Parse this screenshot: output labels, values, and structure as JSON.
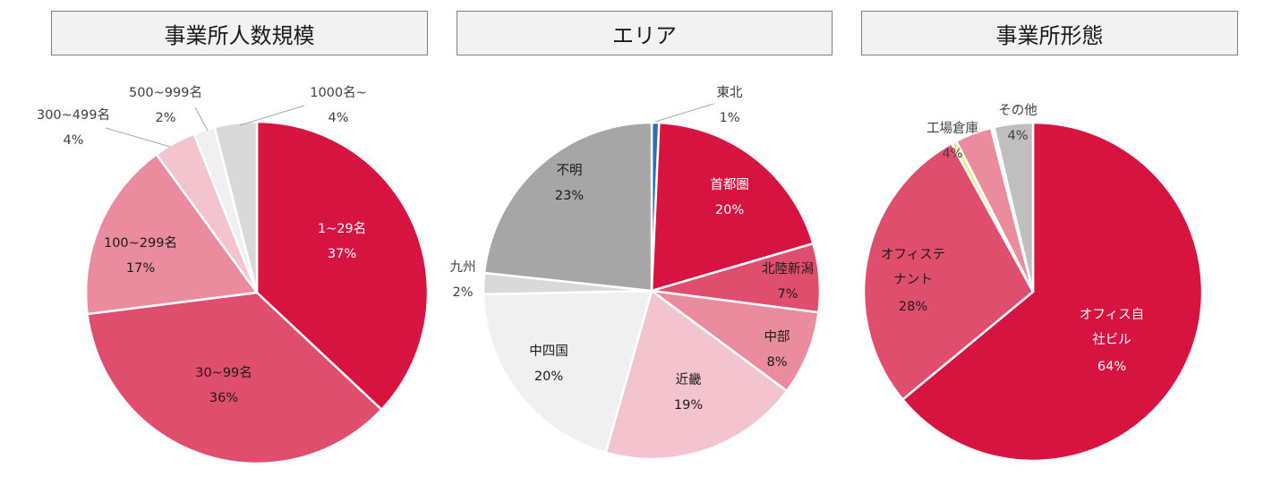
{
  "chart_data": [
    {
      "type": "pie",
      "title": "事業所人数規模",
      "slices": [
        {
          "label": "1~29名",
          "value": 37,
          "pct_text": "37%",
          "color": "#d71440"
        },
        {
          "label": "30~99名",
          "value": 36,
          "pct_text": "36%",
          "color": "#df4f6d"
        },
        {
          "label": "100~299名",
          "value": 17,
          "pct_text": "17%",
          "color": "#ea8c9d"
        },
        {
          "label": "300~499名",
          "value": 4,
          "pct_text": "4%",
          "color": "#f4c4ce"
        },
        {
          "label": "500~999名",
          "value": 2,
          "pct_text": "2%",
          "color": "#f0f0f0"
        },
        {
          "label": "1000名~",
          "value": 4,
          "pct_text": "4%",
          "color": "#d9d9d9"
        }
      ]
    },
    {
      "type": "pie",
      "title": "エリア",
      "slices": [
        {
          "label": "東北",
          "value": 0.7,
          "pct_text": "1%",
          "color": "#2e6fb5"
        },
        {
          "label": "首都圏",
          "value": 19.5,
          "pct_text": "20%",
          "color": "#d71440"
        },
        {
          "label": "北陸新潟",
          "value": 6.5,
          "pct_text": "7%",
          "color": "#df4f6d"
        },
        {
          "label": "中部",
          "value": 8,
          "pct_text": "8%",
          "color": "#ea8c9d"
        },
        {
          "label": "近畿",
          "value": 19,
          "pct_text": "19%",
          "color": "#f4c4ce"
        },
        {
          "label": "中四国",
          "value": 20,
          "pct_text": "20%",
          "color": "#f0f0f0"
        },
        {
          "label": "九州",
          "value": 2,
          "pct_text": "2%",
          "color": "#d9d9d9"
        },
        {
          "label": "不明",
          "value": 23,
          "pct_text": "23%",
          "color": "#a6a6a6"
        }
      ]
    },
    {
      "type": "pie",
      "title": "事業所形態",
      "slices": [
        {
          "label": "オフィス自社ビル",
          "value": 64,
          "pct_text": "64%",
          "color": "#d71440"
        },
        {
          "label": "オフィステナント",
          "value": 28,
          "pct_text": "28%",
          "color": "#df4f6d"
        },
        {
          "label": "",
          "value": 0.5,
          "pct_text": "",
          "color": "#f2e98a"
        },
        {
          "label": "工場倉庫",
          "value": 3.5,
          "pct_text": "4%",
          "color": "#ea8c9d"
        },
        {
          "label": "",
          "value": 0.3,
          "pct_text": "",
          "color": "#f0f0f0"
        },
        {
          "label": "その他",
          "value": 3.7,
          "pct_text": "4%",
          "color": "#bfbfbf"
        }
      ]
    }
  ]
}
